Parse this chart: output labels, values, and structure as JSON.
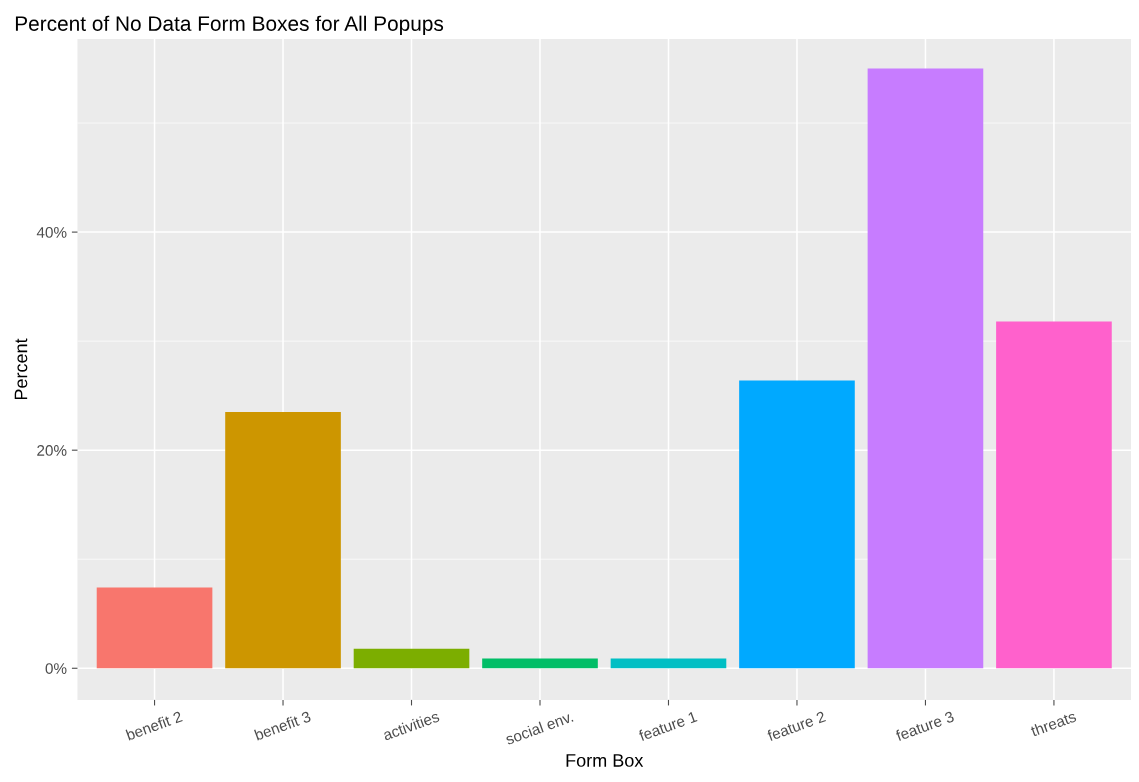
{
  "chart_data": {
    "type": "bar",
    "title": "Percent of No Data Form Boxes for All Popups",
    "xlabel": "Form Box",
    "ylabel": "Percent",
    "categories": [
      "benefit 2",
      "benefit 3",
      "activities",
      "social env.",
      "feature 1",
      "feature 2",
      "feature 3",
      "threats"
    ],
    "values": [
      7.4,
      23.5,
      1.8,
      0.9,
      0.9,
      26.4,
      55.0,
      31.8
    ],
    "colors": [
      "#f8766d",
      "#cd9600",
      "#7cae00",
      "#00be67",
      "#00bfc4",
      "#00a9ff",
      "#c77cff",
      "#ff61cc"
    ],
    "ylim": [
      -2.9,
      57.7
    ],
    "yticks": [
      {
        "value": 0,
        "label": "0%"
      },
      {
        "value": 20,
        "label": "20%"
      },
      {
        "value": 40,
        "label": "40%"
      }
    ],
    "grid": true,
    "legend": false
  }
}
